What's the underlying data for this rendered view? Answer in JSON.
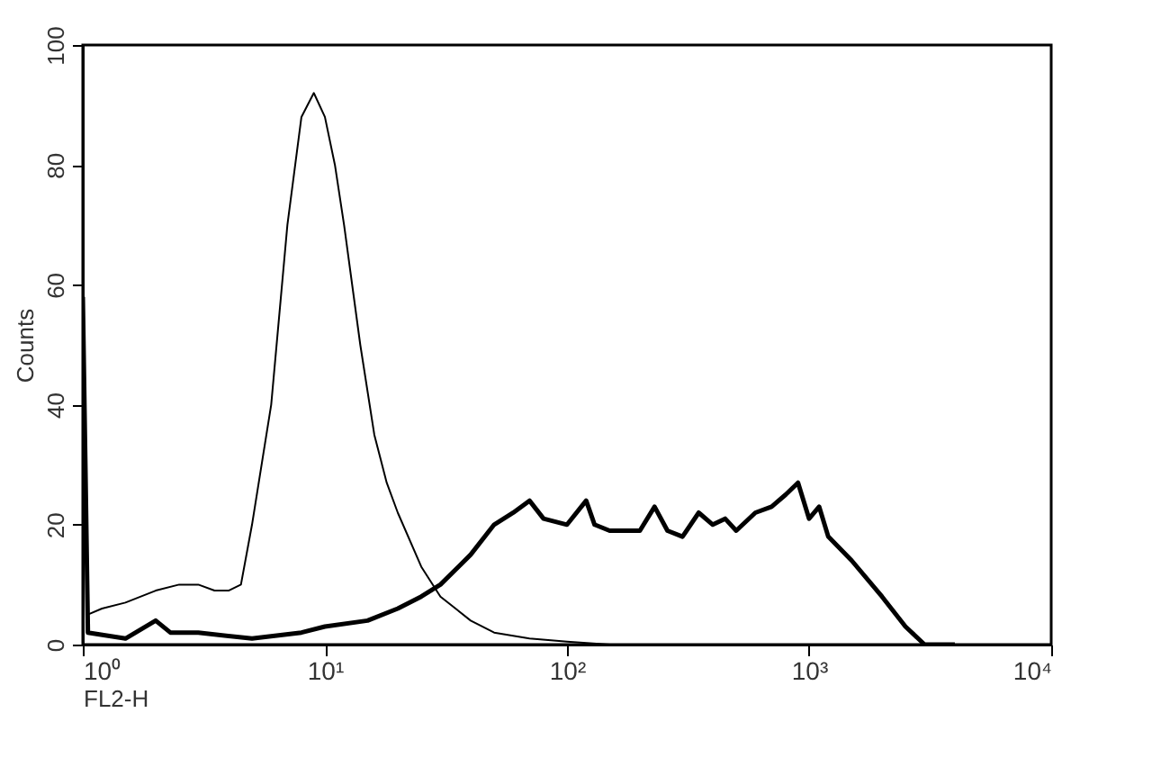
{
  "chart_data": {
    "type": "line",
    "xlabel": "FL2-H",
    "ylabel": "Counts",
    "log": "x",
    "xlim": [
      1,
      10000
    ],
    "ylim": [
      0,
      100
    ],
    "xticks": [
      {
        "value": 1,
        "label": "10⁰"
      },
      {
        "value": 10,
        "label": "10¹"
      },
      {
        "value": 100,
        "label": "10²"
      },
      {
        "value": 1000,
        "label": "10³"
      },
      {
        "value": 10000,
        "label": "10⁴"
      }
    ],
    "yticks": [
      0,
      20,
      40,
      60,
      80,
      100
    ],
    "grid": false,
    "marker": "none",
    "line_style": "solid",
    "series": [
      {
        "color": "#000000",
        "x": [
          1,
          1.05,
          1.2,
          1.5,
          2,
          2.5,
          3,
          3.5,
          4,
          4.5,
          5,
          6,
          7,
          8,
          9,
          10,
          11,
          12,
          14,
          16,
          18,
          20,
          25,
          30,
          40,
          50,
          70,
          100,
          150
        ],
        "values": [
          31,
          5,
          6,
          7,
          9,
          10,
          10,
          9,
          9,
          10,
          20,
          40,
          70,
          88,
          92,
          88,
          80,
          70,
          50,
          35,
          27,
          22,
          13,
          8,
          4,
          2,
          1,
          0.5,
          0
        ]
      },
      {
        "color": "#000000",
        "x": [
          1,
          1.05,
          1.5,
          2,
          2.3,
          3,
          5,
          8,
          10,
          15,
          20,
          25,
          30,
          40,
          50,
          60,
          70,
          80,
          100,
          120,
          130,
          150,
          200,
          230,
          260,
          300,
          350,
          400,
          450,
          500,
          600,
          700,
          800,
          900,
          1000,
          1100,
          1200,
          1500,
          2000,
          2500,
          3000,
          4000
        ],
        "values": [
          58,
          2,
          1,
          4,
          2,
          2,
          1,
          2,
          3,
          4,
          6,
          8,
          10,
          15,
          20,
          22,
          24,
          21,
          20,
          24,
          20,
          19,
          19,
          23,
          19,
          18,
          22,
          20,
          21,
          19,
          22,
          23,
          25,
          27,
          21,
          23,
          18,
          14,
          8,
          3,
          0,
          0
        ]
      }
    ]
  }
}
